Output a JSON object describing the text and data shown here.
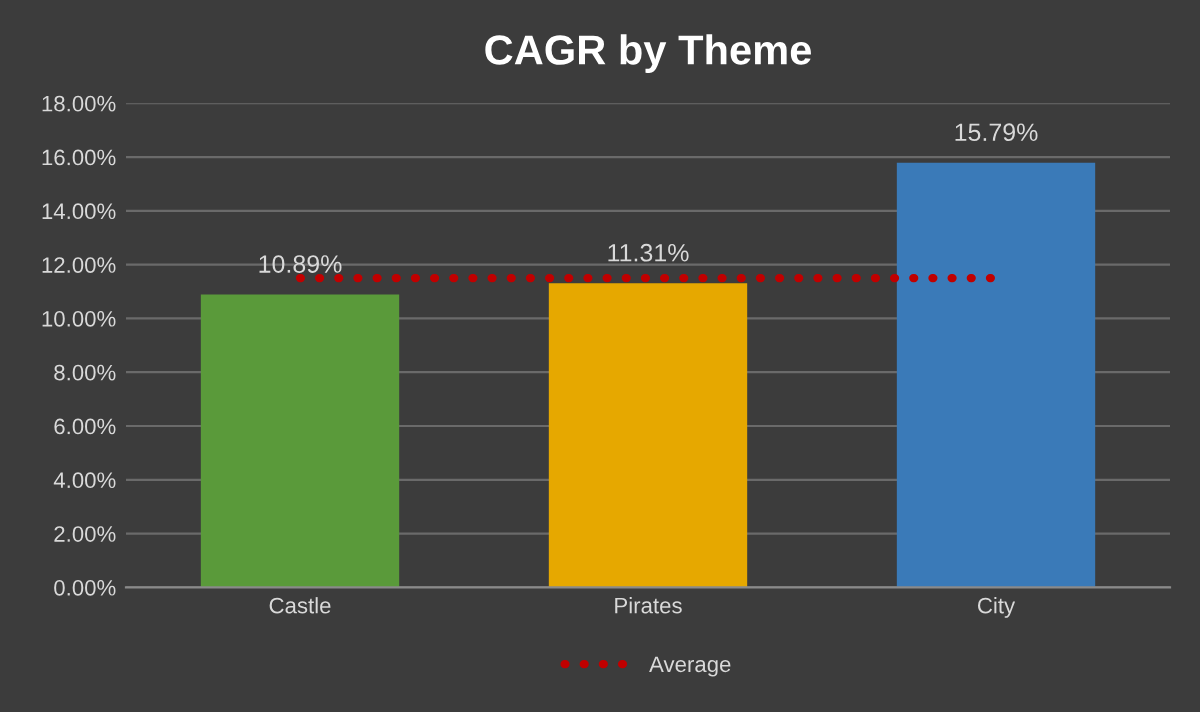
{
  "chart_data": {
    "type": "bar",
    "title": "CAGR by Theme",
    "categories": [
      "Castle",
      "Pirates",
      "City"
    ],
    "series": [
      {
        "colors": [
          "#5a9a3a",
          "#e6a800",
          "#3a7ab8"
        ],
        "values": [
          10.89,
          11.31,
          15.79
        ],
        "value_labels": [
          "10.89%",
          "11.31%",
          "15.79%"
        ]
      },
      {
        "type": "line",
        "name": "Average",
        "color": "#c00000",
        "values": [
          11.5,
          11.5,
          11.5
        ],
        "line_style": "dotted"
      }
    ],
    "ylim": [
      0,
      18
    ],
    "yticks": [
      {
        "value": 0,
        "label": "0.00%"
      },
      {
        "value": 2,
        "label": "2.00%"
      },
      {
        "value": 4,
        "label": "4.00%"
      },
      {
        "value": 6,
        "label": "6.00%"
      },
      {
        "value": 8,
        "label": "8.00%"
      },
      {
        "value": 10,
        "label": "10.00%"
      },
      {
        "value": 12,
        "label": "12.00%"
      },
      {
        "value": 14,
        "label": "14.00%"
      },
      {
        "value": 16,
        "label": "16.00%"
      },
      {
        "value": 18,
        "label": "18.00%"
      }
    ],
    "grid": "y",
    "legend": "bottom"
  }
}
